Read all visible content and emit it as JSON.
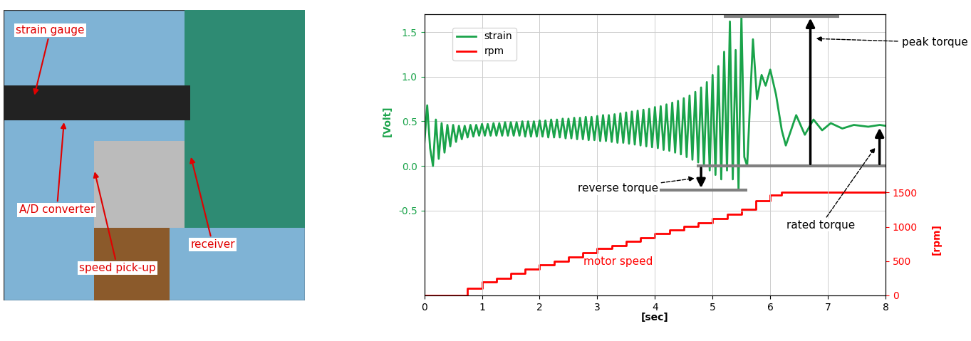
{
  "photo": {
    "labels": [
      "strain gauge",
      "A/D converter",
      "speed pick-up",
      "receiver"
    ]
  },
  "chart_data": {
    "type": "line",
    "xlabel": "[sec]",
    "ylabel": "[Volt]",
    "y2label": "[rpm]",
    "xlim": [
      0,
      8
    ],
    "xticks": [
      0,
      1,
      2,
      3,
      4,
      5,
      6,
      7,
      8
    ],
    "ylim": [
      -1.45,
      1.7
    ],
    "yticks": [
      {
        "value": -0.5,
        "label": "-0.5"
      },
      {
        "value": 0.0,
        "label": "0.0"
      },
      {
        "value": 0.5,
        "label": "0.5"
      },
      {
        "value": 1.0,
        "label": "1.0"
      },
      {
        "value": 1.5,
        "label": "1.5"
      }
    ],
    "y2lim": [
      0,
      4100
    ],
    "y2ticks": [
      0,
      500,
      1000,
      1500
    ],
    "grid": true,
    "legend": "upper left",
    "series": [
      {
        "name": "strain",
        "color": "#1aa34a",
        "line_style": "solid",
        "x": [
          0,
          0.05,
          0.1,
          0.15,
          0.2,
          0.25,
          0.3,
          0.35,
          0.4,
          0.45,
          0.5,
          0.55,
          0.6,
          0.65,
          0.7,
          0.75,
          0.8,
          0.85,
          0.9,
          0.95,
          1.0,
          1.05,
          1.1,
          1.15,
          1.2,
          1.25,
          1.3,
          1.35,
          1.4,
          1.45,
          1.5,
          1.55,
          1.6,
          1.65,
          1.7,
          1.75,
          1.8,
          1.85,
          1.9,
          1.95,
          2.0,
          2.05,
          2.1,
          2.15,
          2.2,
          2.25,
          2.3,
          2.35,
          2.4,
          2.45,
          2.5,
          2.55,
          2.6,
          2.65,
          2.7,
          2.75,
          2.8,
          2.85,
          2.9,
          2.95,
          3.0,
          3.05,
          3.1,
          3.15,
          3.2,
          3.25,
          3.3,
          3.35,
          3.4,
          3.45,
          3.5,
          3.55,
          3.6,
          3.65,
          3.7,
          3.75,
          3.8,
          3.85,
          3.9,
          3.95,
          4.0,
          4.05,
          4.1,
          4.15,
          4.2,
          4.25,
          4.3,
          4.35,
          4.4,
          4.45,
          4.5,
          4.55,
          4.6,
          4.65,
          4.7,
          4.75,
          4.8,
          4.85,
          4.9,
          4.95,
          5.0,
          5.05,
          5.1,
          5.15,
          5.2,
          5.25,
          5.3,
          5.35,
          5.4,
          5.45,
          5.5,
          5.55,
          5.6,
          5.7,
          5.77,
          5.85,
          5.92,
          6.0,
          6.1,
          6.2,
          6.27,
          6.45,
          6.6,
          6.75,
          6.9,
          7.05,
          7.25,
          7.45,
          7.7,
          7.9,
          8.0
        ],
        "values": [
          0.25,
          0.68,
          0.2,
          0.0,
          0.52,
          0.08,
          0.48,
          0.15,
          0.46,
          0.22,
          0.46,
          0.27,
          0.45,
          0.3,
          0.45,
          0.32,
          0.46,
          0.33,
          0.46,
          0.34,
          0.47,
          0.34,
          0.47,
          0.34,
          0.48,
          0.34,
          0.48,
          0.34,
          0.49,
          0.34,
          0.49,
          0.34,
          0.49,
          0.34,
          0.5,
          0.33,
          0.5,
          0.33,
          0.5,
          0.33,
          0.51,
          0.33,
          0.51,
          0.32,
          0.52,
          0.32,
          0.52,
          0.32,
          0.53,
          0.31,
          0.53,
          0.31,
          0.54,
          0.3,
          0.54,
          0.3,
          0.55,
          0.29,
          0.55,
          0.29,
          0.56,
          0.28,
          0.57,
          0.28,
          0.57,
          0.27,
          0.58,
          0.26,
          0.59,
          0.26,
          0.6,
          0.25,
          0.61,
          0.24,
          0.62,
          0.23,
          0.63,
          0.22,
          0.64,
          0.21,
          0.66,
          0.2,
          0.67,
          0.18,
          0.69,
          0.17,
          0.71,
          0.15,
          0.73,
          0.13,
          0.76,
          0.1,
          0.79,
          0.07,
          0.83,
          0.04,
          0.88,
          0.0,
          0.94,
          -0.05,
          1.02,
          -0.1,
          1.12,
          -0.15,
          1.28,
          -0.05,
          1.62,
          -0.15,
          1.3,
          -0.27,
          1.68,
          0.1,
          0.0,
          1.42,
          0.75,
          1.02,
          0.9,
          1.08,
          0.8,
          0.4,
          0.23,
          0.57,
          0.35,
          0.52,
          0.4,
          0.48,
          0.42,
          0.46,
          0.44,
          0.46,
          0.45
        ]
      },
      {
        "name": "rpm",
        "color": "#ff0000",
        "axis": "y2",
        "line_style": "steps",
        "x": [
          0,
          0.75,
          1.0,
          1.25,
          1.5,
          1.75,
          2.0,
          2.25,
          2.5,
          2.75,
          3.0,
          3.25,
          3.5,
          3.75,
          4.0,
          4.25,
          4.5,
          4.75,
          5.0,
          5.25,
          5.5,
          5.75,
          6.0,
          6.2,
          8.0
        ],
        "values": [
          0,
          100,
          200,
          250,
          320,
          380,
          440,
          500,
          560,
          620,
          680,
          730,
          790,
          840,
          900,
          950,
          1010,
          1060,
          1120,
          1180,
          1250,
          1380,
          1460,
          1500,
          1500
        ]
      }
    ],
    "annotations": [
      {
        "text": "peak torque",
        "value": 1.68
      },
      {
        "text": "reverse torque",
        "value": -0.27
      },
      {
        "text": "rated torque",
        "value": 0.45
      },
      {
        "text": "motor speed"
      }
    ]
  }
}
